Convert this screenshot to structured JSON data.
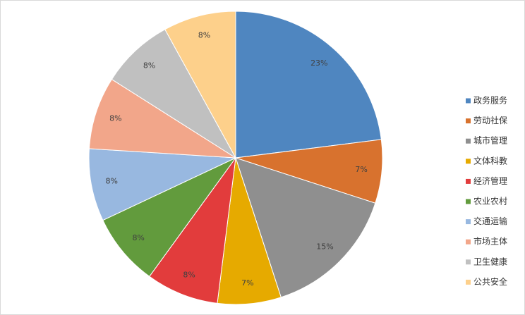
{
  "chart_data": {
    "type": "pie",
    "categories": [
      "政务服务",
      "劳动社保",
      "城市管理",
      "文体科教",
      "经济管理",
      "农业农村",
      "交通运输",
      "市场主体",
      "卫生健康",
      "公共安全"
    ],
    "values": [
      23,
      7,
      15,
      7,
      8,
      8,
      8,
      8,
      8,
      8
    ],
    "value_labels": [
      "23%",
      "7%",
      "15%",
      "7%",
      "8%",
      "8%",
      "8%",
      "8%",
      "8%",
      "8%"
    ],
    "colors": [
      "#4f86c0",
      "#d8722e",
      "#8f8f8f",
      "#e6aa00",
      "#e23c3c",
      "#629b3d",
      "#98b8e0",
      "#f2a68a",
      "#c0c0c0",
      "#fdd08b"
    ],
    "legend": "right"
  }
}
